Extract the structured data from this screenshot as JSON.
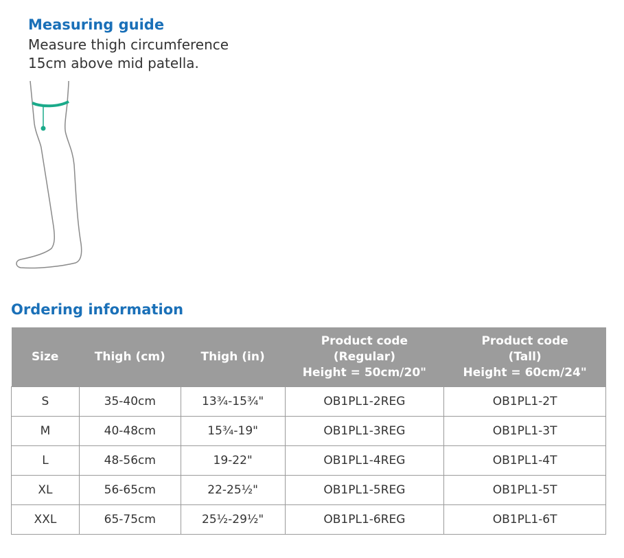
{
  "measuring_guide": {
    "title": "Measuring guide",
    "description_line1": "Measure thigh circumference",
    "description_line2": "15cm above mid patella."
  },
  "ordering": {
    "title": "Ordering information",
    "headers": [
      {
        "lines": [
          "Size"
        ]
      },
      {
        "lines": [
          "Thigh (cm)"
        ]
      },
      {
        "lines": [
          "Thigh (in)"
        ]
      },
      {
        "lines": [
          "Product code",
          "(Regular)",
          "Height = 50cm/20\""
        ]
      },
      {
        "lines": [
          "Product code",
          "(Tall)",
          "Height = 60cm/24\""
        ]
      }
    ],
    "rows": [
      [
        "S",
        "35-40cm",
        "13¾-15¾\"",
        "OB1PL1-2REG",
        "OB1PL1-2T"
      ],
      [
        "M",
        "40-48cm",
        "15¾-19\"",
        "OB1PL1-3REG",
        "OB1PL1-3T"
      ],
      [
        "L",
        "48-56cm",
        "19-22\"",
        "OB1PL1-4REG",
        "OB1PL1-4T"
      ],
      [
        "XL",
        "56-65cm",
        "22-25½\"",
        "OB1PL1-5REG",
        "OB1PL1-5T"
      ],
      [
        "XXL",
        "65-75cm",
        "25½-29½\"",
        "OB1PL1-6REG",
        "OB1PL1-6T"
      ]
    ]
  },
  "colors": {
    "heading": "#1a70b8",
    "header_bg": "#9c9c9c",
    "measure_band": "#1aaa8a",
    "leg_outline": "#8a8a8a"
  }
}
